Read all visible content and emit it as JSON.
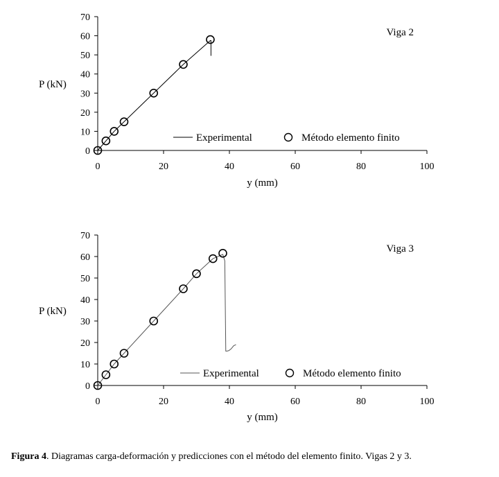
{
  "chart_data": [
    {
      "type": "line",
      "title": "Viga 2",
      "xlabel": "y (mm)",
      "ylabel": "P (kN)",
      "xlim": [
        0,
        100
      ],
      "ylim": [
        0,
        70
      ],
      "xticks": [
        0,
        20,
        40,
        60,
        80,
        100
      ],
      "yticks": [
        0,
        10,
        20,
        30,
        40,
        50,
        60,
        70
      ],
      "grid": false,
      "legend_position": "bottom-right",
      "series": [
        {
          "name": "Experimental",
          "style": "line",
          "color": "#000000",
          "x": [
            0,
            2.5,
            5,
            8,
            17,
            26,
            34.2,
            34.4,
            34.4
          ],
          "y": [
            0,
            5,
            10,
            15,
            30,
            45,
            57.5,
            57.5,
            49.5
          ]
        },
        {
          "name": "Método elemento finito",
          "style": "open-circle",
          "color": "#000000",
          "x": [
            0,
            2.5,
            5,
            8,
            17,
            26,
            34.2
          ],
          "y": [
            0,
            5,
            10,
            15,
            30,
            45,
            58
          ]
        }
      ]
    },
    {
      "type": "line",
      "title": "Viga 3",
      "xlabel": "y (mm)",
      "ylabel": "P (kN)",
      "xlim": [
        0,
        100
      ],
      "ylim": [
        0,
        70
      ],
      "xticks": [
        0,
        20,
        40,
        60,
        80,
        100
      ],
      "yticks": [
        0,
        10,
        20,
        30,
        40,
        50,
        60,
        70
      ],
      "grid": false,
      "legend_position": "bottom-right",
      "series": [
        {
          "name": "Experimental",
          "style": "line",
          "color": "#555555",
          "x": [
            0,
            2.5,
            5,
            8,
            17,
            26,
            30,
            35,
            38,
            38.6,
            38.9,
            39.3,
            39.8,
            40.5,
            41.3,
            42
          ],
          "y": [
            0,
            5,
            10,
            15,
            30,
            45,
            52,
            59,
            61,
            58,
            16,
            16,
            16.2,
            17,
            18.5,
            19
          ]
        },
        {
          "name": "Método elemento finito",
          "style": "open-circle",
          "color": "#000000",
          "x": [
            0,
            2.5,
            5,
            8,
            17,
            26,
            30,
            35,
            38
          ],
          "y": [
            0,
            5,
            10,
            15,
            30,
            45,
            52,
            59,
            61.5
          ]
        }
      ]
    }
  ],
  "caption": {
    "label": "Figura 4",
    "text": ". Diagramas carga-deformación y predicciones con el método del elemento finito. Vigas 2 y 3."
  }
}
